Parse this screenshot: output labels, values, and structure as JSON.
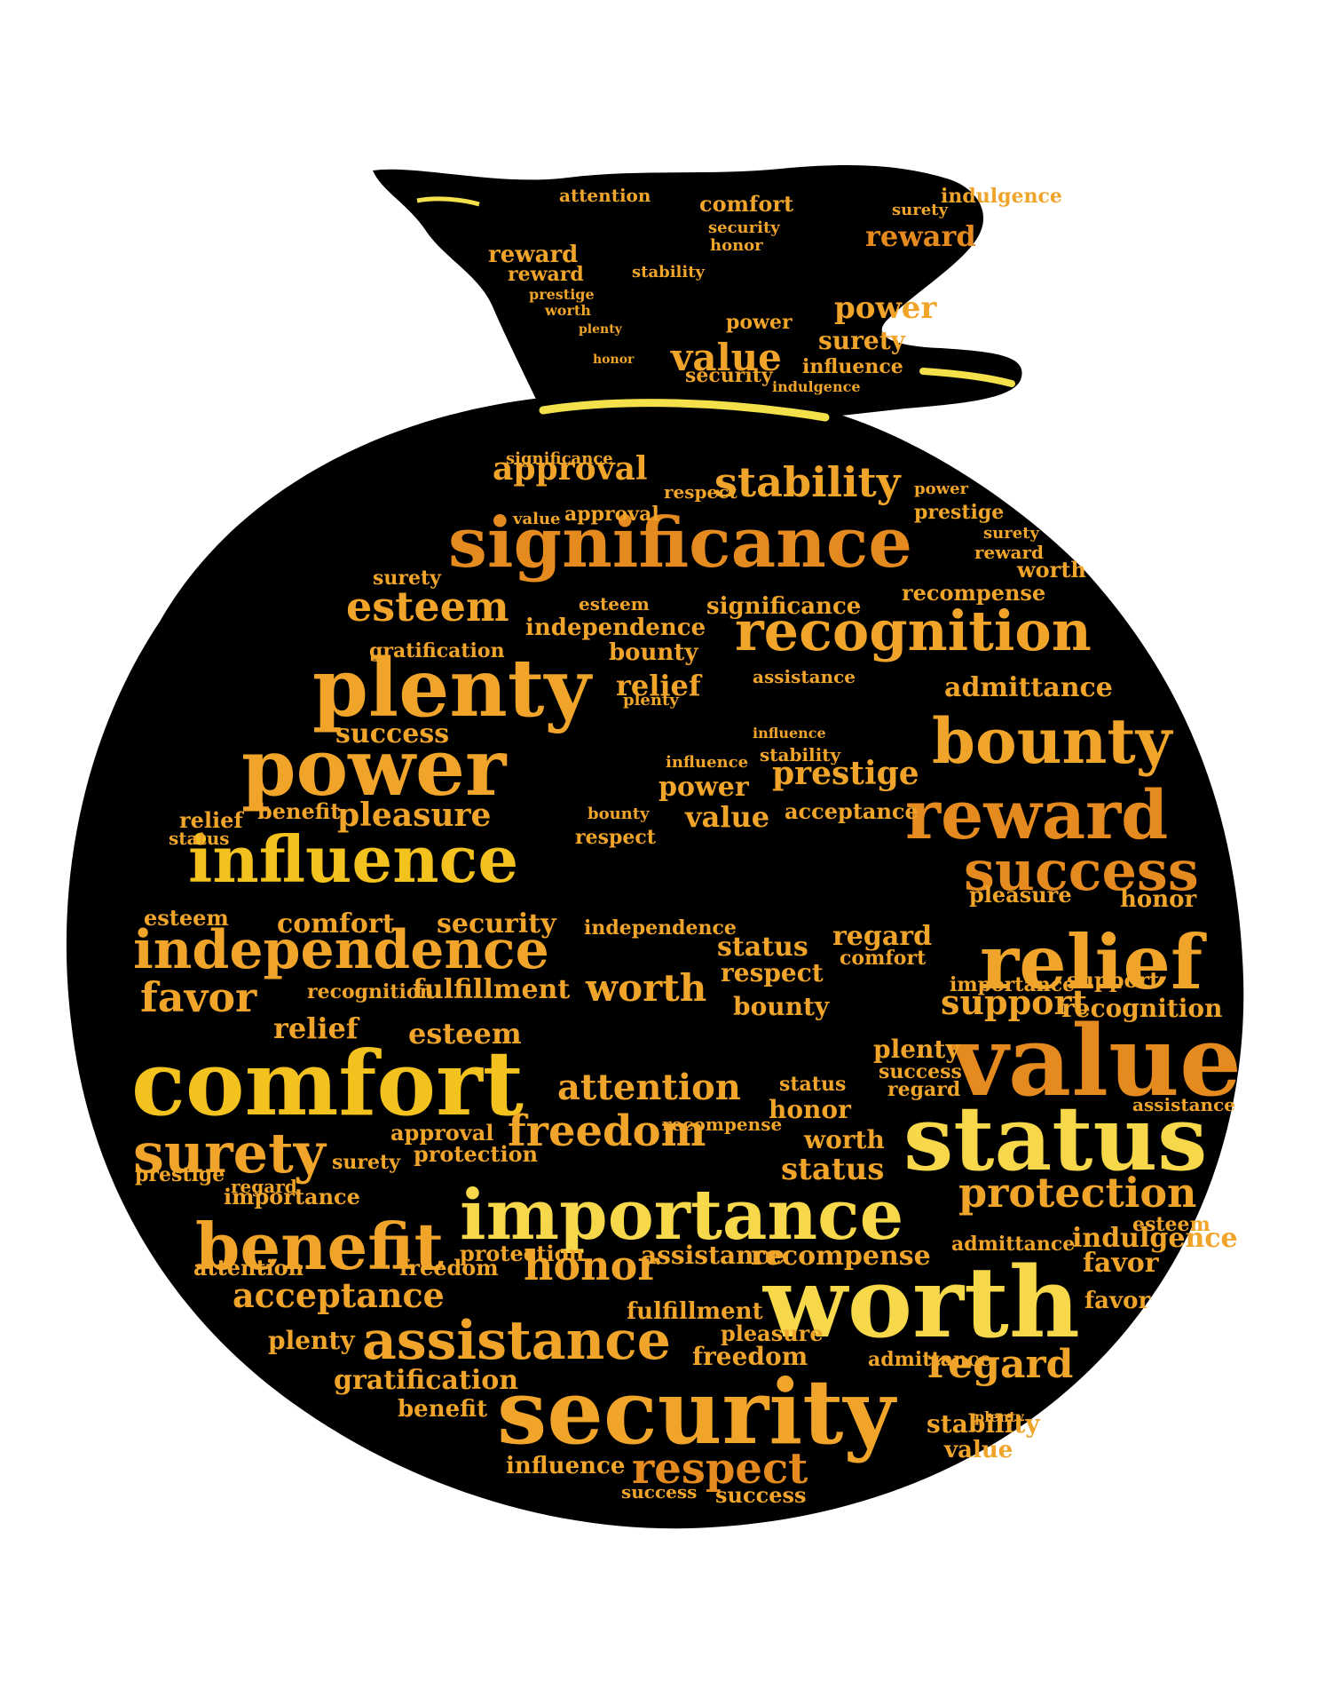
{
  "colors": {
    "bag": "#000000",
    "tie": "#f3e04a",
    "palette": [
      "#f4c21f",
      "#f0a52a",
      "#e58a1f",
      "#f7d84a",
      "#d97b1c"
    ]
  },
  "icons": {
    "bag": "money-bag-icon",
    "symbol": "dollar-sign-icon"
  },
  "words": {
    "w001": "significance",
    "w002": "recognition",
    "w003": "plenty",
    "w004": "power",
    "w005": "influence",
    "w006": "independence",
    "w007": "comfort",
    "w008": "value",
    "w009": "status",
    "w010": "importance",
    "w011": "worth",
    "w012": "security",
    "w013": "benefit",
    "w014": "surety",
    "w015": "assistance",
    "w016": "relief",
    "w017": "reward",
    "w018": "success",
    "w019": "bounty",
    "w020": "protection",
    "w021": "freedom",
    "w022": "respect",
    "w023": "esteem",
    "w024": "stability",
    "w025": "approval",
    "w026": "acceptance",
    "w027": "favor",
    "w028": "honor",
    "w029": "regard",
    "w030": "attention",
    "w031": "recompense",
    "w032": "indulgence",
    "w033": "admittance",
    "w034": "support",
    "w035": "pleasure",
    "w036": "fulfillment",
    "w037": "gratification",
    "w038": "prestige"
  }
}
